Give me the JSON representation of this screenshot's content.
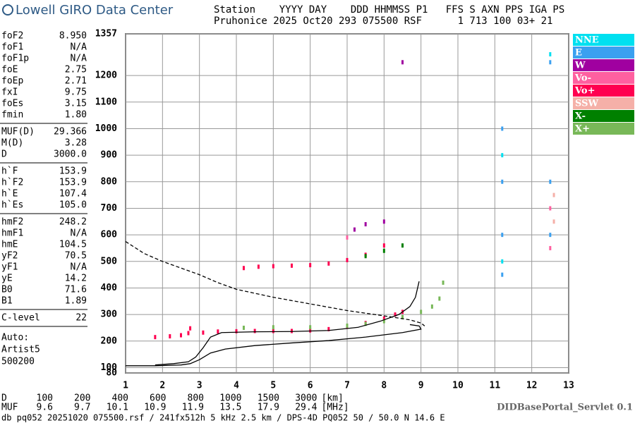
{
  "header": {
    "logo": "Lowell GIRO Data Center",
    "columns": "Station    YYYY DAY    DDD HHMMSS P1   FFS S AXN PPS IGA PS",
    "values": "Pruhonice 2025 Oct20 293 075500 RSF      1 713 100 03+ 21"
  },
  "parameters": [
    [
      [
        "foF2",
        "8.950"
      ],
      [
        "foF1",
        "N/A"
      ],
      [
        "foF1p",
        "N/A"
      ],
      [
        "foE",
        "2.75"
      ],
      [
        "foEp",
        "2.71"
      ],
      [
        "fxI",
        "9.75"
      ],
      [
        "foEs",
        "3.15"
      ],
      [
        "fmin",
        "1.80"
      ]
    ],
    [
      [
        "MUF(D)",
        "29.366"
      ],
      [
        "M(D)",
        "3.28"
      ],
      [
        "D",
        "3000.0"
      ]
    ],
    [
      [
        "h`F",
        "153.9"
      ],
      [
        "h`F2",
        "153.9"
      ],
      [
        "h`E",
        "107.4"
      ],
      [
        "h`Es",
        "105.0"
      ]
    ],
    [
      [
        "hmF2",
        "248.2"
      ],
      [
        "hmF1",
        "N/A"
      ],
      [
        "hmE",
        "104.5"
      ],
      [
        "yF2",
        "70.5"
      ],
      [
        "yF1",
        "N/A"
      ],
      [
        "yE",
        "14.2"
      ],
      [
        "B0",
        "71.6"
      ],
      [
        "B1",
        "1.89"
      ]
    ],
    [
      [
        "C-level",
        "22"
      ]
    ]
  ],
  "autoscaling": [
    "Auto:",
    "Artist5",
    "500200"
  ],
  "muf_table": {
    "d_label": "D",
    "d_values": [
      "100",
      "200",
      "400",
      "600",
      "800",
      "1000",
      "1500",
      "3000"
    ],
    "d_unit": "[km]",
    "muf_label": "MUF",
    "muf_values": [
      "9.6",
      "9.7",
      "10.1",
      "10.9",
      "11.9",
      "13.5",
      "17.9",
      "29.4"
    ],
    "muf_unit": "[MHz]"
  },
  "servlet": "DIDBasePortal_Servlet 0.1",
  "footer": "db pq052 20251020 075500.rsf / 241fx512h 5 kHz 2.5 km / DPS-4D PQ052 50 / 50.0 N 14.6 E",
  "chart_data": {
    "type": "scatter",
    "xlim": [
      1,
      13
    ],
    "xticks": [
      1,
      2,
      3,
      4,
      5,
      6,
      7,
      8,
      9,
      10,
      11,
      12,
      13
    ],
    "ylim": [
      80,
      1357
    ],
    "yticks": [
      80,
      100,
      200,
      300,
      400,
      500,
      600,
      700,
      800,
      900,
      1000,
      1100,
      1200,
      1357
    ],
    "grid": true,
    "series": [
      {
        "name": "NNE",
        "color": "#00e0f0",
        "x": [
          11.2,
          11.2,
          12.5
        ],
        "values": [
          900,
          500,
          1280
        ]
      },
      {
        "name": "E",
        "color": "#3aa0f0",
        "x": [
          11.2,
          11.2,
          11.2,
          11.2,
          12.5,
          12.5,
          12.5
        ],
        "values": [
          1000,
          800,
          600,
          450,
          1250,
          800,
          600
        ]
      },
      {
        "name": "W",
        "color": "#a000a0",
        "x": [
          7.2,
          7.5,
          8,
          8.5
        ],
        "values": [
          620,
          640,
          650,
          1250
        ]
      },
      {
        "name": "Vo-",
        "color": "#ff60a0",
        "x": [
          12.5,
          12.5,
          7
        ],
        "values": [
          700,
          550,
          590
        ]
      },
      {
        "name": "Vo+",
        "color": "#ff0050",
        "x": [
          1.8,
          2.2,
          2.5,
          2.7,
          2.75,
          3.1,
          3.5,
          4,
          4.5,
          5,
          5.5,
          6,
          6.5,
          7,
          7.5,
          8,
          8.3,
          8.5,
          4.2,
          4.6,
          5,
          5.5,
          6,
          6.5,
          7,
          7.5,
          8
        ],
        "values": [
          215,
          218,
          222,
          230,
          248,
          232,
          236,
          237,
          238,
          238,
          238,
          240,
          245,
          255,
          268,
          285,
          300,
          310,
          475,
          480,
          482,
          484,
          486,
          492,
          505,
          525,
          560
        ]
      },
      {
        "name": "SSW",
        "color": "#f5b0a8",
        "x": [
          12.6,
          12.6
        ],
        "values": [
          650,
          750
        ]
      },
      {
        "name": "X-",
        "color": "#008000",
        "x": [
          7.5,
          8,
          8.5
        ],
        "values": [
          520,
          540,
          560
        ]
      },
      {
        "name": "X+",
        "color": "#78b858",
        "x": [
          4.2,
          5,
          6,
          7,
          7.5,
          8,
          8.5,
          9,
          9.3,
          9.5,
          9.6
        ],
        "values": [
          250,
          252,
          252,
          258,
          265,
          275,
          290,
          310,
          330,
          360,
          420
        ]
      },
      {
        "color": "#000000",
        "mode": "line",
        "style": "solid",
        "x": [
          1,
          1.8,
          2.5,
          2.75,
          3.0,
          3.3,
          3.7,
          4.5,
          5.5,
          6.5,
          7.5,
          8.5,
          9.0,
          8.95,
          8.7
        ],
        "values": [
          107,
          107,
          110,
          115,
          130,
          155,
          170,
          183,
          193,
          202,
          215,
          232,
          245,
          257,
          262
        ]
      },
      {
        "color": "#000000",
        "mode": "line",
        "style": "solid",
        "x": [
          1.8,
          2.3,
          2.7,
          2.9,
          3.1,
          3.3,
          3.6,
          4.5,
          5.5,
          6.5,
          7.3,
          7.9,
          8.4,
          8.7,
          8.85,
          8.95
        ],
        "values": [
          110,
          115,
          122,
          140,
          175,
          215,
          232,
          235,
          236,
          240,
          252,
          275,
          300,
          330,
          365,
          425
        ]
      },
      {
        "color": "#000000",
        "mode": "line",
        "style": "dashed",
        "x": [
          1,
          1.5,
          2,
          2.5,
          3,
          3.5,
          4,
          5,
          6,
          7,
          8,
          8.7,
          9,
          9.1
        ],
        "values": [
          575,
          530,
          500,
          475,
          450,
          420,
          395,
          365,
          340,
          315,
          295,
          280,
          268,
          257
        ]
      }
    ]
  }
}
